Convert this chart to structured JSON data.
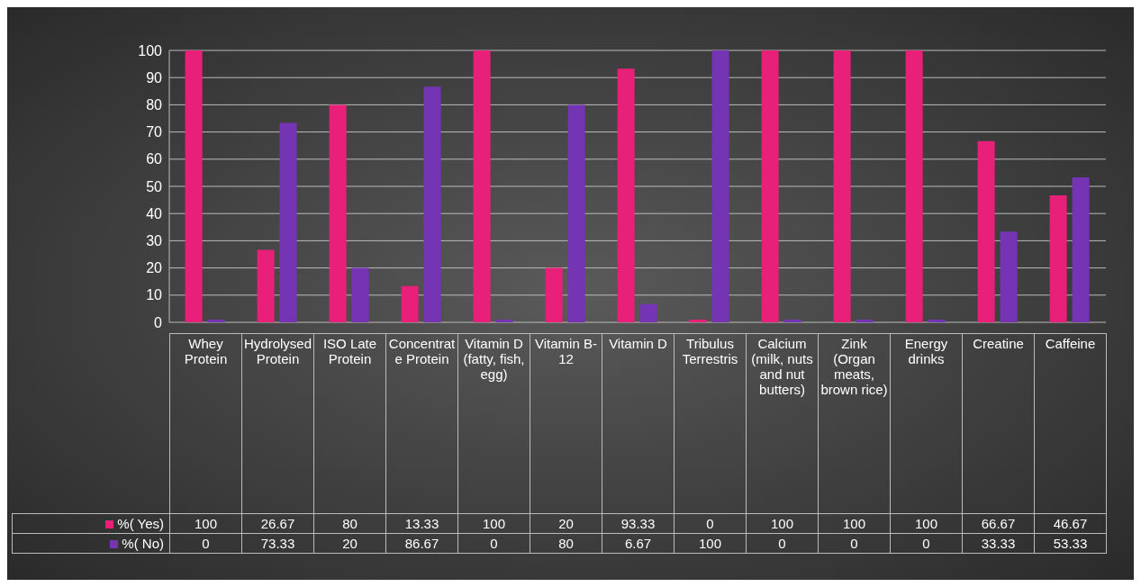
{
  "chart_data": {
    "type": "bar",
    "categories": [
      "Whey Protein",
      "Hydrolysed Protein",
      "ISO Late Protein",
      "Concentrate Protein",
      "Vitamin D (fatty, fish, egg)",
      "Vitamin B-12",
      "Vitamin D",
      "Tribulus Terrestris",
      "Calcium (milk, nuts and nut butters)",
      "Zink (Organ meats, brown rice)",
      "Energy drinks",
      "Creatine",
      "Caffeine"
    ],
    "series": [
      {
        "name": "%( Yes)",
        "color": "#e8207a",
        "values": [
          100,
          26.67,
          80,
          13.33,
          100,
          20,
          93.33,
          0,
          100,
          100,
          100,
          66.67,
          46.67
        ]
      },
      {
        "name": "%( No)",
        "color": "#7434b4",
        "values": [
          0,
          73.33,
          20,
          86.67,
          0,
          80,
          6.67,
          100,
          0,
          0,
          0,
          33.33,
          53.33
        ]
      }
    ],
    "ylim": [
      0,
      100
    ],
    "yticks": [
      0,
      10,
      20,
      30,
      40,
      50,
      60,
      70,
      80,
      90,
      100
    ],
    "grid": "y",
    "legend": "bottom",
    "data_labels": true
  }
}
